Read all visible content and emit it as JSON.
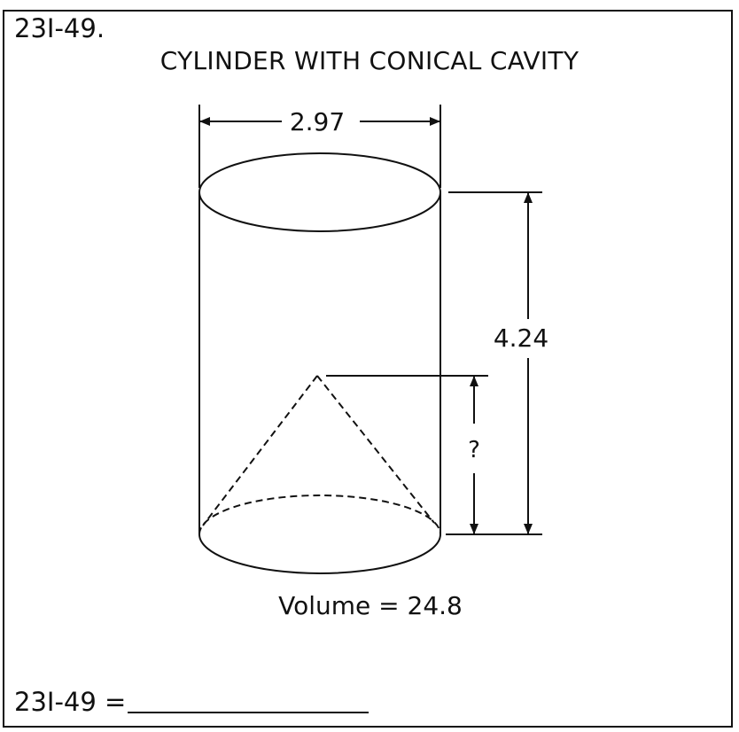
{
  "problem": {
    "id_label": "23I-49.",
    "title": "CYLINDER WITH CONICAL CAVITY"
  },
  "figure": {
    "diameter_label": "2.97",
    "height_label": "4.24",
    "cone_height_label": "?",
    "volume_label": "Volume = 24.8"
  },
  "answer": {
    "label": "23I-49 ="
  }
}
